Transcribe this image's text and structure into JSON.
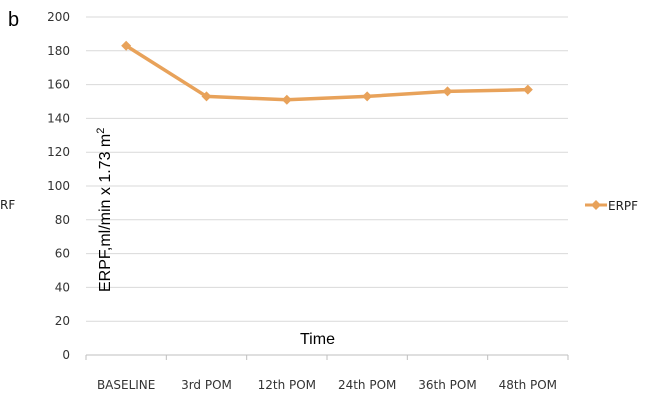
{
  "chart_data": {
    "type": "line",
    "panel_label": "b",
    "title": "",
    "xlabel": "Time",
    "ylabel": "ERPF,ml/min x 1.73 m",
    "ylabel_superscript": "2",
    "categories": [
      "BASELINE",
      "3rd POM",
      "12th POM",
      "24th POM",
      "36th POM",
      "48th POM"
    ],
    "series": [
      {
        "name": "ERPF",
        "values": [
          183,
          153,
          151,
          153,
          156,
          157
        ],
        "color": "#e8a25a"
      }
    ],
    "ylim": [
      0,
      200
    ],
    "yticks": [
      0,
      20,
      40,
      60,
      80,
      100,
      120,
      140,
      160,
      180,
      200
    ],
    "grid": true,
    "legend_position": "right",
    "cut_off_left_text": "RF"
  }
}
